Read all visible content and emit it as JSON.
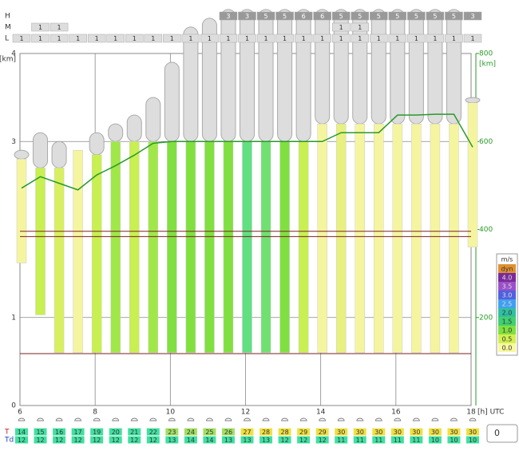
{
  "chart_data": {
    "type": "meteogram",
    "y_label": "[km]",
    "y2_label": "[km]",
    "x_unit": "[h] UTC",
    "xlim": [
      6,
      18
    ],
    "xticks": [
      6,
      8,
      10,
      12,
      14,
      16,
      18
    ],
    "ylim": [
      0,
      4
    ],
    "yticks": [
      0,
      1,
      3,
      4
    ],
    "y2lim": [
      0,
      800
    ],
    "y2ticks": [
      200,
      400,
      600,
      800
    ],
    "x": [
      6,
      6.5,
      7,
      7.5,
      8,
      8.5,
      9,
      9.5,
      10,
      10.5,
      11,
      11.5,
      12,
      12.5,
      13,
      13.5,
      14,
      14.5,
      15,
      15.5,
      16,
      16.5,
      17,
      17.5,
      18
    ],
    "bar_base": [
      1.62,
      1.03,
      0.6,
      0.6,
      0.6,
      0.6,
      0.6,
      0.6,
      0.6,
      0.6,
      0.6,
      0.6,
      0.6,
      0.6,
      0.6,
      0.6,
      0.6,
      0.6,
      0.6,
      0.6,
      0.6,
      0.6,
      0.6,
      0.6,
      1.8
    ],
    "bar_top": [
      2.8,
      2.7,
      2.7,
      2.9,
      2.85,
      3.0,
      3.0,
      3.0,
      3.0,
      3.0,
      3.0,
      3.0,
      3.0,
      3.0,
      3.0,
      3.0,
      3.2,
      3.2,
      3.2,
      3.2,
      3.2,
      3.2,
      3.2,
      3.2,
      3.44
    ],
    "bar_color": [
      "#f5f5a0",
      "#c8f050",
      "#d8f060",
      "#f5f5a0",
      "#c8f050",
      "#a0e848",
      "#c8f050",
      "#a0e848",
      "#80e040",
      "#80e040",
      "#80e040",
      "#80e040",
      "#60e080",
      "#70e070",
      "#80e040",
      "#c8f050",
      "#f5f5a0",
      "#e8f080",
      "#f5f5a0",
      "#f5f5a0",
      "#f5f5a0",
      "#f5f5a0",
      "#f5f5a0",
      "#f5f5a0",
      "#f5f5a0"
    ],
    "cloud_top": [
      2.9,
      3.1,
      3.0,
      2.9,
      3.1,
      3.2,
      3.3,
      3.5,
      3.9,
      4.3,
      4.4,
      4.5,
      4.5,
      4.5,
      4.5,
      4.5,
      4.5,
      4.5,
      4.5,
      4.5,
      4.5,
      4.5,
      4.5,
      4.5,
      3.5
    ],
    "inversions": [
      0.59,
      1.98,
      1.92
    ],
    "series": [
      {
        "name": "boundary layer",
        "color": "#2a9a2a",
        "axis": "y2",
        "values": [
          494,
          520,
          505,
          490,
          524,
          545,
          569,
          596,
          600,
          600,
          600,
          600,
          600,
          600,
          600,
          600,
          600,
          620,
          620,
          620,
          660,
          660,
          662,
          662,
          587
        ]
      }
    ],
    "rows": [
      {
        "name": "H",
        "labels": [
          null,
          null,
          null,
          null,
          null,
          null,
          null,
          null,
          null,
          null,
          null,
          3,
          3,
          5,
          5,
          6,
          6,
          5,
          5,
          5,
          5,
          5,
          5,
          5,
          3
        ]
      },
      {
        "name": "M",
        "labels": [
          null,
          1,
          1,
          null,
          null,
          null,
          null,
          null,
          null,
          null,
          null,
          null,
          null,
          null,
          null,
          null,
          null,
          1,
          1,
          null,
          null,
          null,
          null,
          null,
          null
        ]
      },
      {
        "name": "L",
        "labels": [
          1,
          1,
          1,
          1,
          1,
          1,
          1,
          1,
          1,
          1,
          1,
          1,
          1,
          1,
          1,
          1,
          1,
          1,
          1,
          1,
          1,
          1,
          1,
          1,
          1
        ]
      }
    ],
    "T": {
      "name": "T",
      "values": [
        14,
        15,
        16,
        17,
        19,
        20,
        21,
        22,
        23,
        24,
        25,
        26,
        27,
        28,
        28,
        29,
        29,
        30,
        30,
        30,
        30,
        30,
        30,
        30,
        30
      ]
    },
    "Td": {
      "name": "Td",
      "values": [
        12,
        12,
        12,
        12,
        12,
        12,
        12,
        12,
        13,
        14,
        14,
        13,
        13,
        13,
        12,
        12,
        12,
        11,
        11,
        11,
        11,
        11,
        10,
        10,
        10
      ]
    },
    "legend": {
      "title": "m/s",
      "items": [
        {
          "label": "dyn",
          "color": "#e09030"
        },
        {
          "label": "4.0",
          "color": "#7a2a9a"
        },
        {
          "label": "3.5",
          "color": "#9a50c8"
        },
        {
          "label": "3.0",
          "color": "#5060e0"
        },
        {
          "label": "2.5",
          "color": "#40a0f0"
        },
        {
          "label": "2.0",
          "color": "#30c0a0"
        },
        {
          "label": "1.5",
          "color": "#40d070"
        },
        {
          "label": "1.0",
          "color": "#80e040"
        },
        {
          "label": "0.5",
          "color": "#d0f050"
        },
        {
          "label": "0.0",
          "color": "#f8f8a0"
        }
      ]
    },
    "spinner": "0"
  }
}
